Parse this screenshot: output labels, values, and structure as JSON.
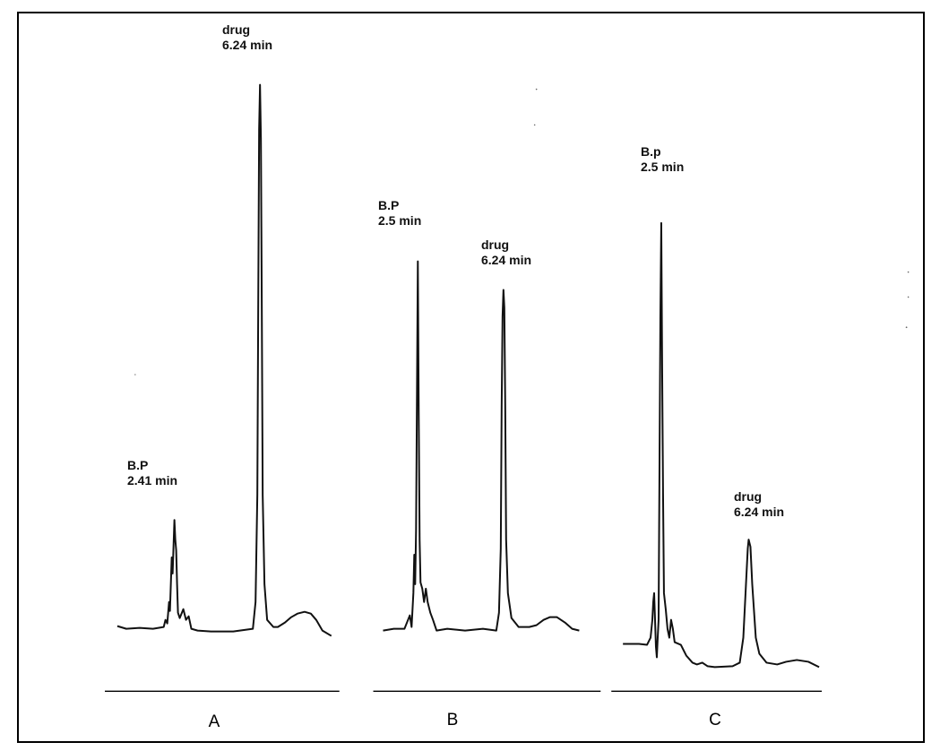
{
  "chart_data": [
    {
      "type": "line",
      "panel_label": "A",
      "peaks": [
        {
          "label": "B.P",
          "time": "2.41 min",
          "relative_height": 0.19
        },
        {
          "label": "drug",
          "time": "6.24 min",
          "relative_height": 1.0
        }
      ]
    },
    {
      "type": "line",
      "panel_label": "B",
      "peaks": [
        {
          "label": "B.P",
          "time": "2.5 min",
          "relative_height": 0.69
        },
        {
          "label": "drug",
          "time": "6.24 min",
          "relative_height": 0.64
        }
      ]
    },
    {
      "type": "line",
      "panel_label": "C",
      "peaks": [
        {
          "label": "B.p",
          "time": "2.5 min",
          "relative_height": 0.79
        },
        {
          "label": "drug",
          "time": "6.24 min",
          "relative_height": 0.23
        }
      ]
    }
  ]
}
